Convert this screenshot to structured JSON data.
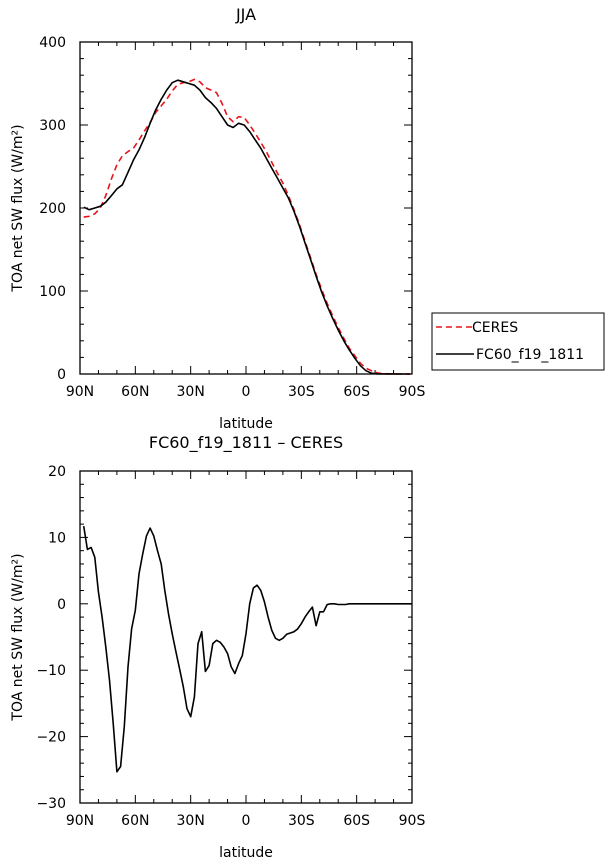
{
  "chart_data": [
    {
      "type": "line",
      "title": "JJA",
      "xlabel": "latitude",
      "ylabel": "TOA net SW flux (W/m²)",
      "xlim": [
        90,
        -90
      ],
      "ylim": [
        0,
        400
      ],
      "x_ticks": [
        90,
        60,
        30,
        0,
        -30,
        -60,
        -90
      ],
      "x_tick_labels": [
        "90N",
        "60N",
        "30N",
        "0",
        "30S",
        "60S",
        "90S"
      ],
      "y_ticks": [
        0,
        100,
        200,
        300,
        400
      ],
      "y_tick_labels": [
        "0",
        "100",
        "200",
        "300",
        "400"
      ],
      "legend_position": "right",
      "series": [
        {
          "name": "CERES",
          "color": "#e8141b",
          "dash": "dashed",
          "x": [
            88,
            85,
            82,
            79,
            76,
            73,
            70,
            67,
            64,
            61,
            58,
            55,
            52,
            49,
            46,
            43,
            40,
            37,
            34,
            31,
            28,
            25,
            22,
            19,
            16,
            13,
            10,
            7,
            4,
            1,
            -2,
            -5,
            -8,
            -11,
            -14,
            -17,
            -20,
            -23,
            -26,
            -29,
            -32,
            -35,
            -38,
            -41,
            -44,
            -47,
            -50,
            -53,
            -56,
            -59,
            -62,
            -65,
            -68,
            -71,
            -74,
            -77,
            -80,
            -83,
            -86,
            -89
          ],
          "y": [
            189,
            190,
            193,
            200,
            215,
            235,
            252,
            263,
            268,
            272,
            282,
            293,
            303,
            315,
            323,
            331,
            341,
            349,
            351,
            352,
            355,
            352,
            345,
            342,
            339,
            326,
            310,
            304,
            310,
            309,
            300,
            290,
            279,
            268,
            255,
            242,
            230,
            215,
            198,
            180,
            160,
            140,
            120,
            102,
            85,
            70,
            56,
            43,
            31,
            22,
            13,
            7,
            4,
            1.5,
            0.5,
            0.2,
            0.1,
            0,
            0,
            0
          ]
        },
        {
          "name": "FC60_f19_1811",
          "color": "#000000",
          "dash": "solid",
          "x": [
            88,
            85,
            82,
            79,
            76,
            73,
            70,
            67,
            64,
            61,
            58,
            55,
            52,
            49,
            46,
            43,
            40,
            37,
            34,
            31,
            28,
            25,
            22,
            19,
            16,
            13,
            10,
            7,
            4,
            1,
            -2,
            -5,
            -8,
            -11,
            -14,
            -17,
            -20,
            -23,
            -26,
            -29,
            -32,
            -35,
            -38,
            -41,
            -44,
            -47,
            -50,
            -53,
            -56,
            -59,
            -62,
            -65,
            -68,
            -71,
            -74,
            -77,
            -80,
            -83,
            -86,
            -89
          ],
          "y": [
            201,
            198,
            200,
            202,
            207,
            215,
            223,
            228,
            243,
            258,
            270,
            285,
            302,
            318,
            331,
            342,
            351,
            354,
            352,
            350,
            348,
            342,
            333,
            327,
            320,
            310,
            300,
            297,
            302,
            300,
            292,
            282,
            272,
            260,
            248,
            236,
            224,
            212,
            196,
            178,
            158,
            138,
            118,
            99,
            82,
            67,
            53,
            40,
            29,
            19,
            10,
            4,
            1,
            0.3,
            0.1,
            0.1,
            0.1,
            0,
            0,
            0
          ]
        }
      ]
    },
    {
      "type": "line",
      "title": "FC60_f19_1811 – CERES",
      "xlabel": "latitude",
      "ylabel": "TOA net SW flux (W/m²)",
      "xlim": [
        90,
        -90
      ],
      "ylim": [
        -30,
        20
      ],
      "x_ticks": [
        90,
        60,
        30,
        0,
        -30,
        -60,
        -90
      ],
      "x_tick_labels": [
        "90N",
        "60N",
        "30N",
        "0",
        "30S",
        "60S",
        "90S"
      ],
      "y_ticks": [
        -30,
        -20,
        -10,
        0,
        10,
        20
      ],
      "y_tick_labels": [
        "−30",
        "−20",
        "−10",
        "0",
        "10",
        "20"
      ],
      "series": [
        {
          "color": "#000000",
          "dash": "solid",
          "x": [
            88,
            86,
            84,
            82,
            80,
            78,
            76,
            74,
            72,
            70,
            68,
            66,
            64,
            62,
            60,
            58,
            56,
            54,
            52,
            50,
            48,
            46,
            44,
            42,
            40,
            38,
            36,
            34,
            32,
            30,
            28,
            26,
            24,
            22,
            20,
            18,
            16,
            14,
            12,
            10,
            8,
            6,
            4,
            2,
            0,
            -2,
            -4,
            -6,
            -8,
            -10,
            -12,
            -14,
            -16,
            -18,
            -20,
            -22,
            -24,
            -26,
            -28,
            -30,
            -32,
            -34,
            -36,
            -38,
            -40,
            -42,
            -44,
            -46,
            -48,
            -50,
            -52,
            -54,
            -56,
            -58,
            -60,
            -62,
            -64,
            -66,
            -68,
            -70,
            -72,
            -74,
            -76,
            -78,
            -80,
            -82,
            -84,
            -86,
            -88,
            -90
          ],
          "y": [
            11.7,
            8.2,
            8.5,
            7.0,
            1.8,
            -2.0,
            -6.5,
            -11.5,
            -18,
            -25.3,
            -24.5,
            -18.5,
            -9.5,
            -3.8,
            -1.0,
            4.5,
            7.5,
            10.2,
            11.4,
            10.2,
            8.0,
            6.0,
            2.0,
            -1.5,
            -4.5,
            -7.2,
            -9.8,
            -12.5,
            -15.8,
            -17.0,
            -14.0,
            -6.0,
            -4.2,
            -10.2,
            -9.3,
            -6.0,
            -5.5,
            -5.8,
            -6.5,
            -7.5,
            -9.5,
            -10.5,
            -9.0,
            -7.8,
            -4.5,
            0.0,
            2.4,
            2.8,
            2.0,
            0.3,
            -2.0,
            -4.0,
            -5.2,
            -5.5,
            -5.2,
            -4.6,
            -4.4,
            -4.2,
            -3.8,
            -3.0,
            -2.0,
            -1.2,
            -0.5,
            -3.3,
            -1.2,
            -1.2,
            -0.1,
            0.0,
            0.0,
            -0.1,
            -0.1,
            -0.1,
            0.0,
            0.0,
            0.0,
            0.0,
            0.0,
            0.0,
            0.0,
            0.0,
            0.0,
            0.0,
            0.0,
            0.0,
            0.0,
            0.0,
            0.0,
            0.0,
            0.0,
            0.0
          ]
        }
      ]
    }
  ]
}
